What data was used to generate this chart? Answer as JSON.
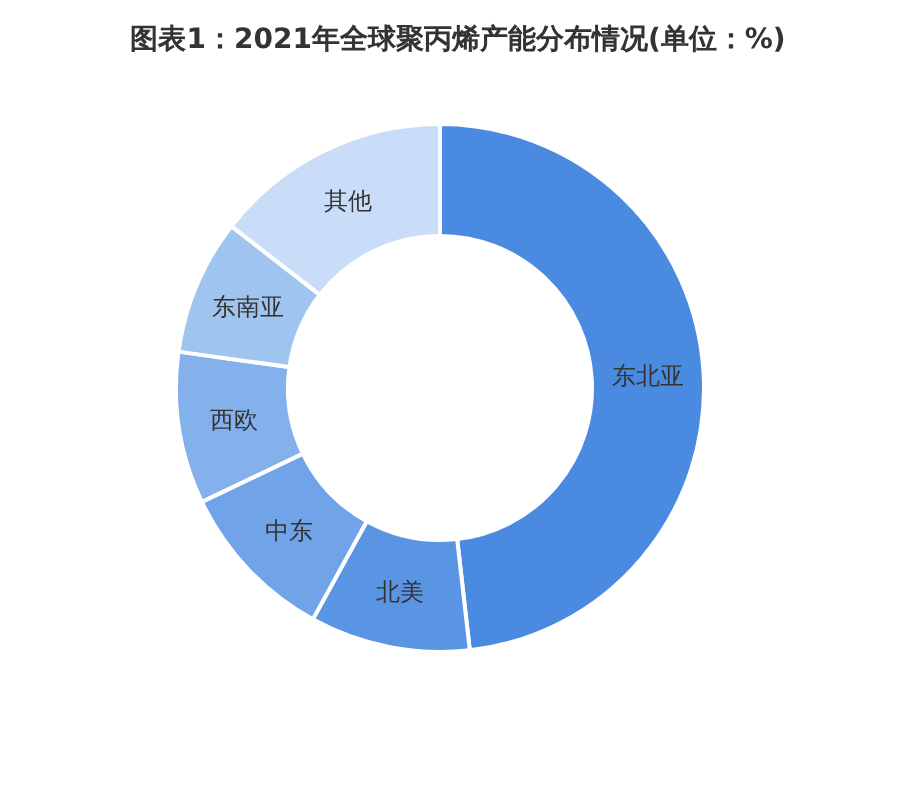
{
  "chart_data": {
    "type": "donut",
    "title": "图表1：2021年全球聚丙烯产能分布情况(单位：%)",
    "categories": [
      "东北亚",
      "北美",
      "中东",
      "西欧",
      "东南亚",
      "其他"
    ],
    "values": [
      48.2,
      9.8,
      9.9,
      9.3,
      8.3,
      14.5
    ],
    "colors": [
      "#4a8ae0",
      "#5a95e4",
      "#70a3e8",
      "#84b1ec",
      "#a0c4f0",
      "#c9ddf8"
    ]
  }
}
